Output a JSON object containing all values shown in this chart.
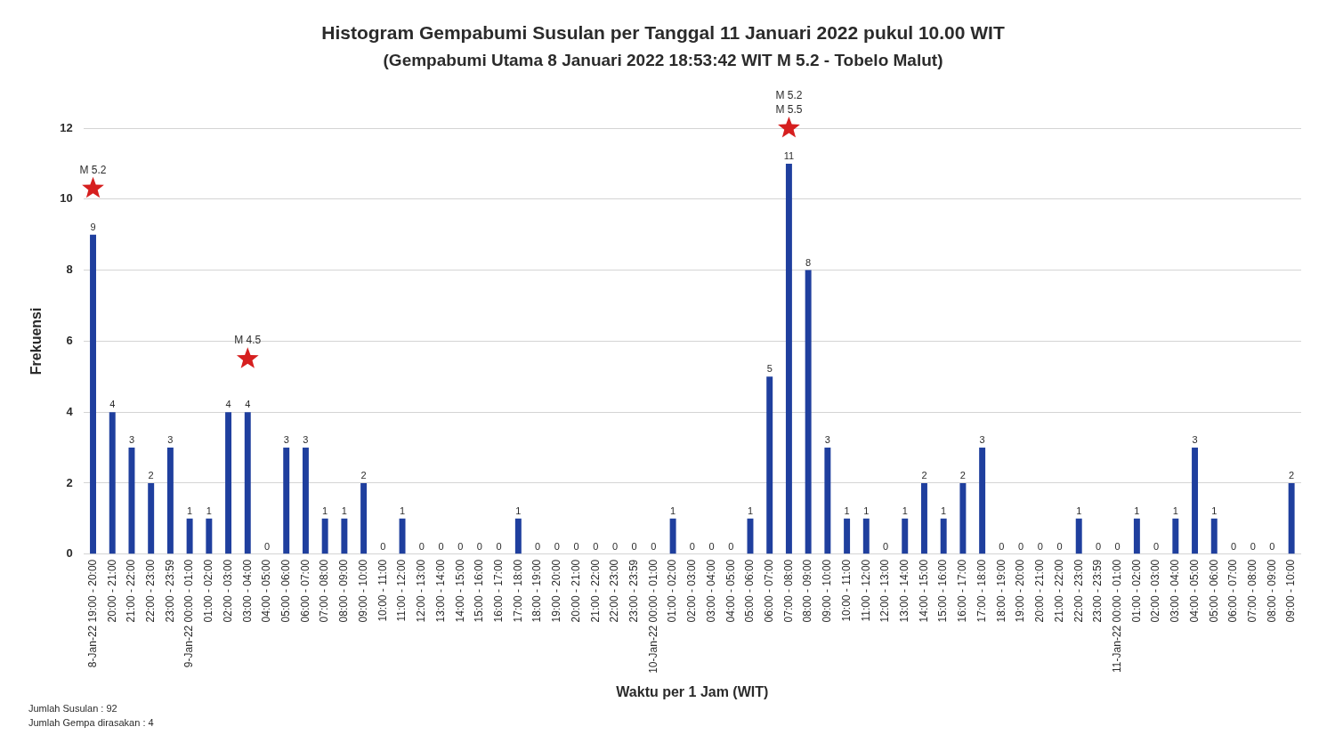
{
  "chart_data": {
    "type": "bar",
    "title": "Histogram Gempabumi Susulan per Tanggal 11 Januari 2022 pukul 10.00 WIT",
    "subtitle": "(Gempabumi Utama 8 Januari 2022 18:53:42 WIT M 5.2 - Tobelo Malut)",
    "xlabel": "Waktu per 1 Jam (WIT)",
    "ylabel": "Frekuensi",
    "categories": [
      "8-Jan-22 19:00 - 20:00",
      "20:00 - 21:00",
      "21:00 - 22:00",
      "22:00 - 23:00",
      "23:00 - 23:59",
      "9-Jan-22 00:00 - 01:00",
      "01:00 - 02:00",
      "02:00 - 03:00",
      "03:00 - 04:00",
      "04:00 - 05:00",
      "05:00 - 06:00",
      "06:00 - 07:00",
      "07:00 - 08:00",
      "08:00 - 09:00",
      "09:00 - 10:00",
      "10:00 - 11:00",
      "11:00 - 12:00",
      "12:00 - 13:00",
      "13:00 - 14:00",
      "14:00 - 15:00",
      "15:00 - 16:00",
      "16:00 - 17:00",
      "17:00 - 18:00",
      "18:00 - 19:00",
      "19:00 - 20:00",
      "20:00 - 21:00",
      "21:00 - 22:00",
      "22:00 - 23:00",
      "23:00 - 23:59",
      "10-Jan-22 00:00 - 01:00",
      "01:00 - 02:00",
      "02:00 - 03:00",
      "03:00 - 04:00",
      "04:00 - 05:00",
      "05:00 - 06:00",
      "06:00 - 07:00",
      "07:00 - 08:00",
      "08:00 - 09:00",
      "09:00 - 10:00",
      "10:00 - 11:00",
      "11:00 - 12:00",
      "12:00 - 13:00",
      "13:00 - 14:00",
      "14:00 - 15:00",
      "15:00 - 16:00",
      "16:00 - 17:00",
      "17:00 - 18:00",
      "18:00 - 19:00",
      "19:00 - 20:00",
      "20:00 - 21:00",
      "21:00 - 22:00",
      "22:00 - 23:00",
      "23:00 - 23:59",
      "11-Jan-22 00:00 - 01:00",
      "01:00 - 02:00",
      "02:00 - 03:00",
      "03:00 - 04:00",
      "04:00 - 05:00",
      "05:00 - 06:00",
      "06:00 - 07:00",
      "07:00 - 08:00",
      "08:00 - 09:00",
      "09:00 - 10:00"
    ],
    "series": [
      {
        "color": "#1f3f9e",
        "values": [
          9,
          4,
          3,
          2,
          3,
          1,
          1,
          4,
          4,
          0,
          3,
          3,
          1,
          1,
          2,
          0,
          1,
          0,
          0,
          0,
          0,
          0,
          1,
          0,
          0,
          0,
          0,
          0,
          0,
          0,
          1,
          0,
          0,
          0,
          1,
          5,
          11,
          8,
          3,
          1,
          1,
          0,
          1,
          2,
          1,
          2,
          3,
          0,
          0,
          0,
          0,
          1,
          0,
          0,
          1,
          0,
          1,
          3,
          1,
          0,
          0,
          0,
          2
        ]
      },
      {
        "type": "scatter",
        "color": "#d61f1f",
        "marker": "star",
        "values": [
          10.3,
          null,
          null,
          null,
          null,
          null,
          null,
          null,
          5.5,
          null,
          null,
          null,
          null,
          null,
          null,
          null,
          null,
          null,
          null,
          null,
          null,
          null,
          null,
          null,
          null,
          null,
          null,
          null,
          null,
          null,
          null,
          null,
          null,
          null,
          null,
          null,
          12,
          null,
          null,
          null,
          null,
          null,
          null,
          null,
          null,
          null,
          null,
          null,
          null,
          null,
          null,
          null,
          null,
          null,
          null,
          null,
          null,
          null,
          null,
          null,
          null,
          null,
          null
        ],
        "value_labels": [
          "M 5.2",
          null,
          null,
          null,
          null,
          null,
          null,
          null,
          "M 4.5",
          null,
          null,
          null,
          null,
          null,
          null,
          null,
          null,
          null,
          null,
          null,
          null,
          null,
          null,
          null,
          null,
          null,
          null,
          null,
          null,
          null,
          null,
          null,
          null,
          null,
          null,
          null,
          "M 5.2\nM 5.5",
          null,
          null,
          null,
          null,
          null,
          null,
          null,
          null,
          null,
          null,
          null,
          null,
          null,
          null,
          null,
          null,
          null,
          null,
          null,
          null,
          null,
          null,
          null,
          null,
          null,
          null
        ]
      }
    ],
    "ylim": [
      0,
      12
    ],
    "yticks": [
      0,
      2,
      4,
      6,
      8,
      10,
      12
    ],
    "grid": "y",
    "data_labels": true,
    "annotations": [
      "Jumlah Susulan : 92",
      "Jumlah Gempa dirasakan : 4"
    ]
  }
}
